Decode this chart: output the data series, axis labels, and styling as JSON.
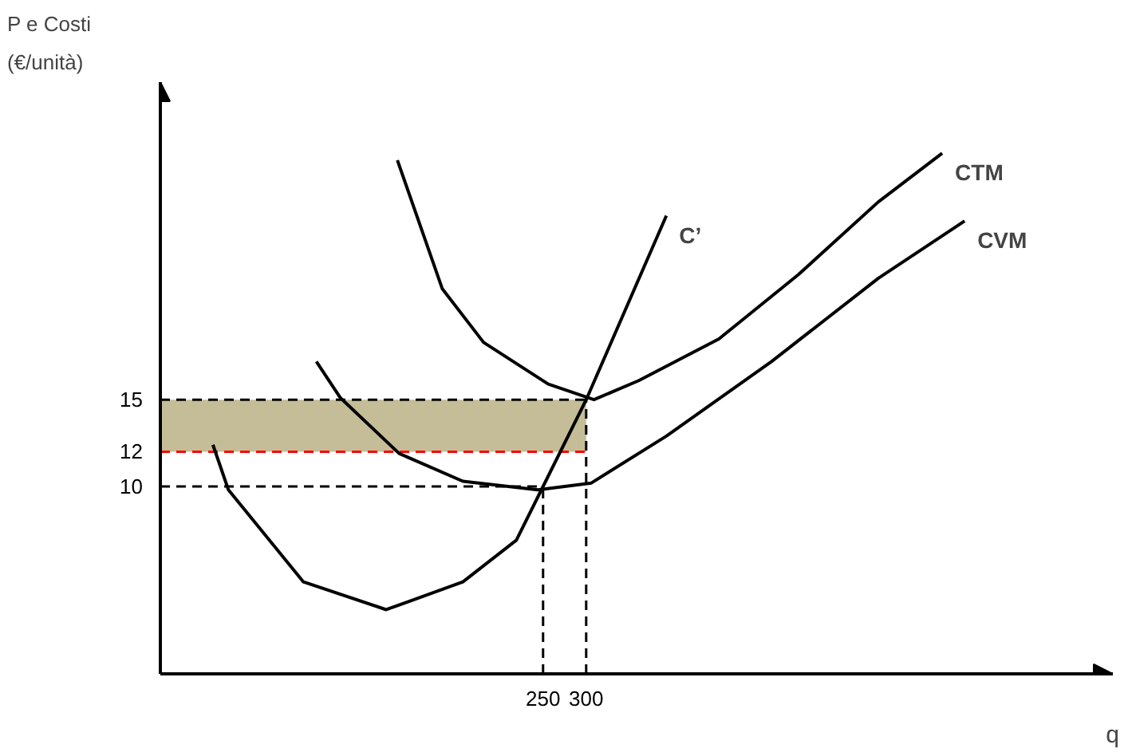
{
  "chart_data": {
    "type": "line",
    "ylabel": "P e Costi\n(€/unità)",
    "xlabel": "q",
    "xlim": [
      -194,
      911
    ],
    "ylim": [
      -0.8,
      33.3
    ],
    "xticks": [
      250,
      300
    ],
    "yticks": [
      10,
      12,
      15
    ],
    "grid": false,
    "line_style": "solid",
    "marker": "none",
    "series": [
      {
        "name": "CTM",
        "color": "#000000",
        "x": [
          81,
          133,
          181,
          256,
          309,
          361,
          454,
          546,
          639,
          713
        ],
        "values": [
          28.8,
          21.4,
          18.3,
          15.9,
          15.0,
          16.1,
          18.5,
          22.2,
          26.4,
          29.2
        ]
      },
      {
        "name": "CVM",
        "color": "#000000",
        "x": [
          -13,
          15,
          83,
          157,
          244,
          306,
          393,
          515,
          639,
          739
        ],
        "values": [
          17.2,
          15.1,
          11.9,
          10.3,
          9.8,
          10.2,
          12.9,
          17.2,
          22.0,
          25.3
        ]
      },
      {
        "name": "C’",
        "color": "#000000",
        "x": [
          -133,
          -115,
          -28,
          68,
          157,
          219,
          250,
          300,
          393
        ],
        "values": [
          12.4,
          9.8,
          4.5,
          2.9,
          4.5,
          6.9,
          10,
          15,
          25.6
        ]
      }
    ],
    "ref_lines": [
      {
        "axis": "y",
        "value": 15,
        "color": "#000000",
        "line_style": "dashed"
      },
      {
        "axis": "y",
        "value": 10,
        "color": "#000000",
        "line_style": "dashed"
      },
      {
        "axis": "y",
        "value": 12,
        "color": "#ff0000",
        "line_style": "dashed"
      },
      {
        "axis": "x",
        "value": 300,
        "color": "#000000",
        "line_style": "dashed"
      },
      {
        "axis": "x",
        "value": 250,
        "color": "#000000",
        "line_style": "dashed"
      }
    ],
    "bands": [
      {
        "axis": "y",
        "from": 12,
        "to": 15,
        "color": "#c4bd97"
      }
    ]
  }
}
